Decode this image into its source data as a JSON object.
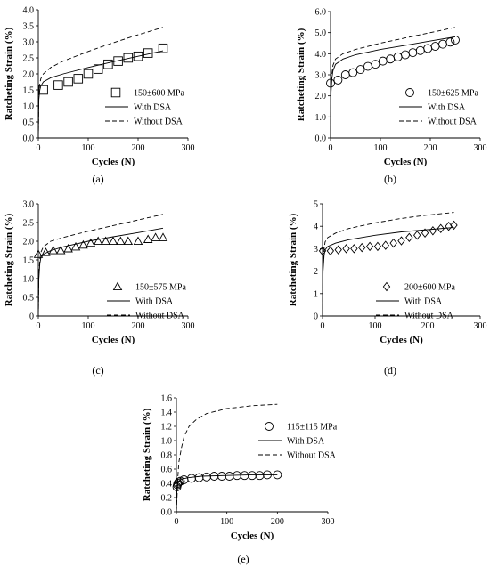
{
  "chart_data": [
    {
      "type": "scatter",
      "panel_label": "(a)",
      "xlabel": "Cycles (N)",
      "ylabel": "Ratcheting Strain (%)",
      "xlim": [
        0,
        300
      ],
      "ylim": [
        0,
        4.0
      ],
      "xticks": [
        "0",
        "100",
        "200",
        "300"
      ],
      "yticks": [
        "0.0",
        "0.5",
        "1.0",
        "1.5",
        "2.0",
        "2.5",
        "3.0",
        "3.5",
        "4.0"
      ],
      "grid": false,
      "legend_position": "right",
      "series": [
        {
          "name": "150±600 MPa",
          "kind": "marker",
          "marker": "square",
          "points": [
            [
              10,
              1.5
            ],
            [
              40,
              1.65
            ],
            [
              60,
              1.75
            ],
            [
              80,
              1.85
            ],
            [
              100,
              2.0
            ],
            [
              120,
              2.15
            ],
            [
              140,
              2.3
            ],
            [
              160,
              2.4
            ],
            [
              180,
              2.5
            ],
            [
              200,
              2.55
            ],
            [
              220,
              2.65
            ],
            [
              250,
              2.8
            ]
          ]
        },
        {
          "name": "With DSA",
          "kind": "line",
          "dash": "solid",
          "points": [
            [
              0,
              0
            ],
            [
              1,
              1.2
            ],
            [
              3,
              1.5
            ],
            [
              5,
              1.62
            ],
            [
              10,
              1.75
            ],
            [
              25,
              1.88
            ],
            [
              50,
              2.0
            ],
            [
              100,
              2.2
            ],
            [
              150,
              2.38
            ],
            [
              200,
              2.55
            ],
            [
              250,
              2.72
            ]
          ]
        },
        {
          "name": "Without DSA",
          "kind": "line",
          "dash": "dashed",
          "points": [
            [
              0,
              0
            ],
            [
              1,
              1.4
            ],
            [
              3,
              1.7
            ],
            [
              5,
              1.85
            ],
            [
              10,
              2.0
            ],
            [
              25,
              2.2
            ],
            [
              50,
              2.4
            ],
            [
              100,
              2.7
            ],
            [
              150,
              2.97
            ],
            [
              200,
              3.22
            ],
            [
              250,
              3.45
            ]
          ]
        }
      ]
    },
    {
      "type": "scatter",
      "panel_label": "(b)",
      "xlabel": "Cycles (N)",
      "ylabel": "Ratcheting Strain (%)",
      "xlim": [
        0,
        300
      ],
      "ylim": [
        0,
        6.0
      ],
      "xticks": [
        "0",
        "100",
        "200",
        "300"
      ],
      "yticks": [
        "0.0",
        "1.0",
        "2.0",
        "3.0",
        "4.0",
        "5.0",
        "6.0"
      ],
      "grid": false,
      "legend_position": "right",
      "series": [
        {
          "name": "150±625 MPa",
          "kind": "marker",
          "marker": "circle",
          "points": [
            [
              0,
              2.6
            ],
            [
              15,
              2.75
            ],
            [
              30,
              3.0
            ],
            [
              45,
              3.1
            ],
            [
              60,
              3.25
            ],
            [
              75,
              3.4
            ],
            [
              90,
              3.5
            ],
            [
              105,
              3.65
            ],
            [
              120,
              3.75
            ],
            [
              135,
              3.85
            ],
            [
              150,
              3.95
            ],
            [
              165,
              4.05
            ],
            [
              180,
              4.15
            ],
            [
              195,
              4.25
            ],
            [
              210,
              4.35
            ],
            [
              225,
              4.45
            ],
            [
              240,
              4.55
            ],
            [
              250,
              4.65
            ]
          ]
        },
        {
          "name": "With DSA",
          "kind": "line",
          "dash": "solid",
          "points": [
            [
              0,
              0
            ],
            [
              1,
              2.2
            ],
            [
              3,
              2.9
            ],
            [
              5,
              3.2
            ],
            [
              10,
              3.5
            ],
            [
              25,
              3.75
            ],
            [
              50,
              3.95
            ],
            [
              100,
              4.2
            ],
            [
              150,
              4.4
            ],
            [
              200,
              4.6
            ],
            [
              250,
              4.8
            ]
          ]
        },
        {
          "name": "Without DSA",
          "kind": "line",
          "dash": "dashed",
          "points": [
            [
              0,
              0
            ],
            [
              1,
              2.4
            ],
            [
              3,
              3.1
            ],
            [
              5,
              3.45
            ],
            [
              10,
              3.75
            ],
            [
              25,
              4.0
            ],
            [
              50,
              4.2
            ],
            [
              100,
              4.5
            ],
            [
              150,
              4.75
            ],
            [
              200,
              5.0
            ],
            [
              250,
              5.25
            ]
          ]
        }
      ]
    },
    {
      "type": "scatter",
      "panel_label": "(c)",
      "xlabel": "Cycles (N)",
      "ylabel": "Ratcheting Strain (%)",
      "xlim": [
        0,
        300
      ],
      "ylim": [
        0,
        3.0
      ],
      "xticks": [
        "0",
        "100",
        "200",
        "300"
      ],
      "yticks": [
        "0",
        "0.5",
        "1.0",
        "1.5",
        "2.0",
        "2.5",
        "3.0"
      ],
      "grid": false,
      "legend_position": "bottom-right",
      "series": [
        {
          "name": "150±575 MPa",
          "kind": "marker",
          "marker": "triangle",
          "points": [
            [
              0,
              1.65
            ],
            [
              15,
              1.7
            ],
            [
              30,
              1.75
            ],
            [
              45,
              1.75
            ],
            [
              60,
              1.8
            ],
            [
              75,
              1.85
            ],
            [
              90,
              1.9
            ],
            [
              105,
              1.95
            ],
            [
              120,
              2.0
            ],
            [
              135,
              2.0
            ],
            [
              150,
              2.0
            ],
            [
              165,
              2.0
            ],
            [
              180,
              2.0
            ],
            [
              200,
              2.0
            ],
            [
              220,
              2.05
            ],
            [
              235,
              2.1
            ],
            [
              250,
              2.1
            ]
          ]
        },
        {
          "name": "With DSA",
          "kind": "line",
          "dash": "solid",
          "points": [
            [
              0,
              0
            ],
            [
              1,
              1.0
            ],
            [
              3,
              1.4
            ],
            [
              5,
              1.55
            ],
            [
              10,
              1.65
            ],
            [
              25,
              1.75
            ],
            [
              50,
              1.85
            ],
            [
              100,
              2.0
            ],
            [
              150,
              2.12
            ],
            [
              200,
              2.23
            ],
            [
              250,
              2.35
            ]
          ]
        },
        {
          "name": "Without DSA",
          "kind": "line",
          "dash": "dashed",
          "points": [
            [
              0,
              0
            ],
            [
              1,
              1.1
            ],
            [
              3,
              1.5
            ],
            [
              5,
              1.7
            ],
            [
              10,
              1.85
            ],
            [
              25,
              2.0
            ],
            [
              50,
              2.1
            ],
            [
              100,
              2.27
            ],
            [
              150,
              2.42
            ],
            [
              200,
              2.57
            ],
            [
              250,
              2.72
            ]
          ]
        }
      ]
    },
    {
      "type": "scatter",
      "panel_label": "(d)",
      "xlabel": "Cycles (N)",
      "ylabel": "Ratcheting Strain (%)",
      "xlim": [
        0,
        300
      ],
      "ylim": [
        0,
        5
      ],
      "xticks": [
        "0",
        "100",
        "200",
        "300"
      ],
      "yticks": [
        "0",
        "1",
        "2",
        "3",
        "4",
        "5"
      ],
      "grid": false,
      "legend_position": "bottom-right",
      "series": [
        {
          "name": "200±600 MPa",
          "kind": "marker",
          "marker": "diamond",
          "points": [
            [
              0,
              2.9
            ],
            [
              15,
              2.9
            ],
            [
              30,
              2.95
            ],
            [
              45,
              3.0
            ],
            [
              60,
              3.0
            ],
            [
              75,
              3.05
            ],
            [
              90,
              3.1
            ],
            [
              105,
              3.1
            ],
            [
              120,
              3.15
            ],
            [
              135,
              3.25
            ],
            [
              150,
              3.35
            ],
            [
              165,
              3.5
            ],
            [
              180,
              3.6
            ],
            [
              195,
              3.7
            ],
            [
              210,
              3.8
            ],
            [
              225,
              3.9
            ],
            [
              240,
              4.0
            ],
            [
              250,
              4.05
            ]
          ]
        },
        {
          "name": "With DSA",
          "kind": "line",
          "dash": "solid",
          "points": [
            [
              0,
              0
            ],
            [
              1,
              2.0
            ],
            [
              3,
              2.7
            ],
            [
              5,
              2.95
            ],
            [
              10,
              3.1
            ],
            [
              25,
              3.25
            ],
            [
              50,
              3.4
            ],
            [
              100,
              3.6
            ],
            [
              150,
              3.75
            ],
            [
              200,
              3.85
            ],
            [
              250,
              3.95
            ]
          ]
        },
        {
          "name": "Without DSA",
          "kind": "line",
          "dash": "dashed",
          "points": [
            [
              0,
              0
            ],
            [
              1,
              2.3
            ],
            [
              3,
              3.0
            ],
            [
              5,
              3.3
            ],
            [
              10,
              3.5
            ],
            [
              25,
              3.7
            ],
            [
              50,
              3.9
            ],
            [
              100,
              4.15
            ],
            [
              150,
              4.35
            ],
            [
              200,
              4.5
            ],
            [
              250,
              4.62
            ]
          ]
        }
      ]
    },
    {
      "type": "scatter",
      "panel_label": "(e)",
      "xlabel": "Cycles (N)",
      "ylabel": "Ratcheting Strain (%)",
      "xlim": [
        0,
        300
      ],
      "ylim": [
        0,
        1.6
      ],
      "xticks": [
        "0",
        "100",
        "200",
        "300"
      ],
      "yticks": [
        "0.0",
        "0.2",
        "0.4",
        "0.6",
        "0.8",
        "1.0",
        "1.2",
        "1.4",
        "1.6"
      ],
      "grid": false,
      "legend_position": "top-right",
      "series": [
        {
          "name": "115±115 MPa",
          "kind": "marker",
          "marker": "circle",
          "points": [
            [
              1,
              0.35
            ],
            [
              2,
              0.38
            ],
            [
              3,
              0.4
            ],
            [
              5,
              0.42
            ],
            [
              8,
              0.43
            ],
            [
              15,
              0.45
            ],
            [
              30,
              0.47
            ],
            [
              45,
              0.48
            ],
            [
              60,
              0.49
            ],
            [
              75,
              0.5
            ],
            [
              90,
              0.5
            ],
            [
              105,
              0.5
            ],
            [
              120,
              0.51
            ],
            [
              135,
              0.51
            ],
            [
              150,
              0.51
            ],
            [
              165,
              0.51
            ],
            [
              180,
              0.52
            ],
            [
              200,
              0.52
            ]
          ]
        },
        {
          "name": "With DSA",
          "kind": "line",
          "dash": "solid",
          "points": [
            [
              0,
              0
            ],
            [
              1,
              0.3
            ],
            [
              3,
              0.4
            ],
            [
              5,
              0.43
            ],
            [
              10,
              0.46
            ],
            [
              25,
              0.48
            ],
            [
              50,
              0.5
            ],
            [
              100,
              0.51
            ],
            [
              150,
              0.52
            ],
            [
              200,
              0.52
            ]
          ]
        },
        {
          "name": "Without DSA",
          "kind": "line",
          "dash": "dashed",
          "points": [
            [
              0,
              0
            ],
            [
              3,
              0.5
            ],
            [
              5,
              0.7
            ],
            [
              10,
              0.9
            ],
            [
              15,
              1.05
            ],
            [
              25,
              1.2
            ],
            [
              40,
              1.3
            ],
            [
              60,
              1.38
            ],
            [
              100,
              1.45
            ],
            [
              150,
              1.49
            ],
            [
              200,
              1.51
            ]
          ]
        }
      ]
    }
  ]
}
